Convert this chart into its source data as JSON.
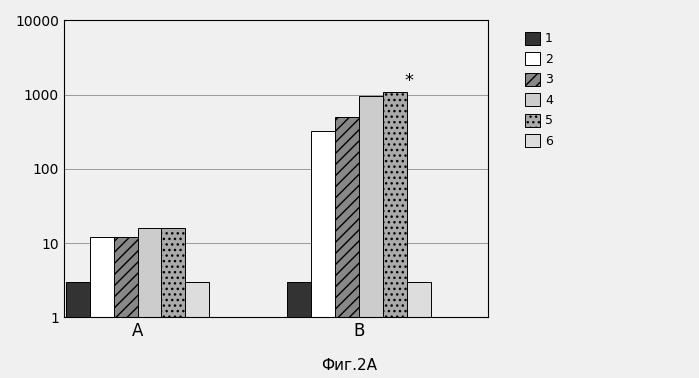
{
  "groups": [
    "A",
    "B"
  ],
  "series_labels": [
    "1",
    "2",
    "3",
    "4",
    "5",
    "6"
  ],
  "values": {
    "A": [
      2,
      11,
      11,
      15,
      15,
      2
    ],
    "B": [
      2,
      320,
      500,
      950,
      1100,
      2
    ]
  },
  "bar_colors": [
    "#333333",
    "#ffffff",
    "#888888",
    "#cccccc",
    "#aaaaaa",
    "#dddddd"
  ],
  "bar_hatches": [
    null,
    null,
    "///",
    "===",
    "...",
    null
  ],
  "bar_edgecolors": [
    "#000000",
    "#000000",
    "#000000",
    "#000000",
    "#000000",
    "#000000"
  ],
  "legend_hatches": [
    null,
    null,
    "///",
    "===",
    "...",
    null
  ],
  "legend_facecolors": [
    "#333333",
    "#ffffff",
    "#888888",
    "#cccccc",
    "#aaaaaa",
    "#dddddd"
  ],
  "ylim": [
    1,
    10000
  ],
  "xlabel": "",
  "ylabel": "",
  "title": "",
  "caption": "Фиг.2A",
  "star_annotation": "*",
  "star_series_index": 4,
  "star_group": "B"
}
